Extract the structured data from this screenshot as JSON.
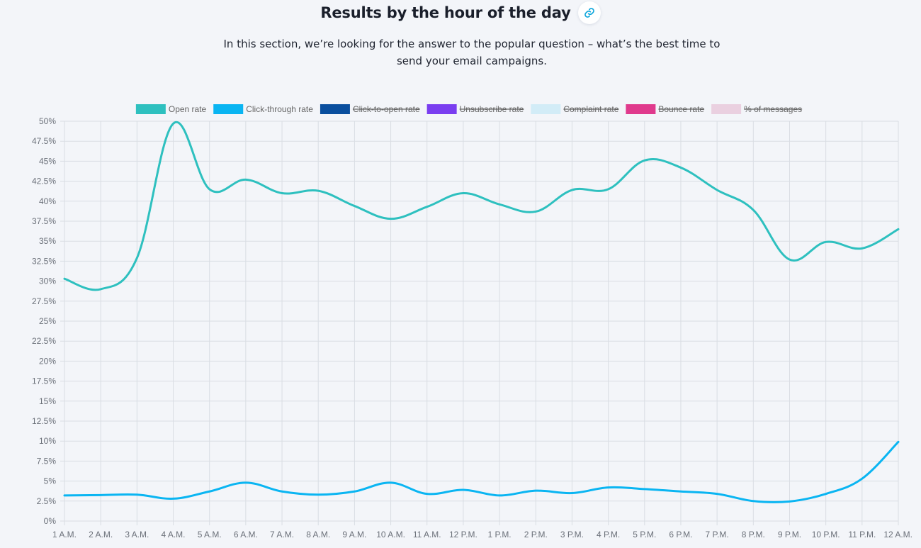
{
  "header": {
    "title": "Results by the hour of the day",
    "subtitle": "In this section, we’re looking for the answer to the popular question – what’s the best time to send your email campaigns.",
    "link_icon": "link-icon"
  },
  "colors": {
    "open_rate": "#2ec0bf",
    "click_through_rate": "#0ab5f2",
    "click_to_open_rate": "#0a4f9e",
    "unsubscribe_rate": "#7a3ef0",
    "complaint_rate": "#d2ecf7",
    "bounce_rate": "#e03a8d",
    "percent_of_messages": "#ead0e0",
    "grid": "#d9dde3",
    "tick_text": "#6b7079",
    "legend_text": "#666666"
  },
  "chart_data": {
    "type": "line",
    "categories": [
      "1 A.M.",
      "2 A.M.",
      "3 A.M.",
      "4 A.M.",
      "5 A.M.",
      "6 A.M.",
      "7 A.M.",
      "8 A.M.",
      "9 A.M.",
      "10 A.M.",
      "11 A.M.",
      "12 P.M.",
      "1 P.M.",
      "2 P.M.",
      "3 P.M.",
      "4 P.M.",
      "5 P.M.",
      "6 P.M.",
      "7 P.M.",
      "8 P.M.",
      "9 P.M.",
      "10 P.M.",
      "11 P.M.",
      "12 A.M."
    ],
    "y_ticks": [
      "0%",
      "2.5%",
      "5%",
      "7.5%",
      "10%",
      "12.5%",
      "15%",
      "17.5%",
      "20%",
      "22.5%",
      "25%",
      "27.5%",
      "30%",
      "32.5%",
      "35%",
      "37.5%",
      "40%",
      "42.5%",
      "45%",
      "47.5%",
      "50%"
    ],
    "ylim": [
      0,
      50
    ],
    "grid": true,
    "legend_position": "top",
    "series": [
      {
        "name": "Open rate",
        "visible": true,
        "color_key": "open_rate",
        "values": [
          30.3,
          29.0,
          32.9,
          49.7,
          41.5,
          42.7,
          41.0,
          41.3,
          39.4,
          37.8,
          39.3,
          41.0,
          39.6,
          38.7,
          41.4,
          41.5,
          45.1,
          44.2,
          41.4,
          38.9,
          32.7,
          34.9,
          34.1,
          36.5
        ]
      },
      {
        "name": "Click-through rate",
        "visible": true,
        "color_key": "click_through_rate",
        "values": [
          3.2,
          3.25,
          3.3,
          2.8,
          3.7,
          4.8,
          3.7,
          3.3,
          3.7,
          4.8,
          3.4,
          3.9,
          3.2,
          3.8,
          3.5,
          4.2,
          4.0,
          3.7,
          3.4,
          2.5,
          2.45,
          3.4,
          5.3,
          9.9
        ]
      },
      {
        "name": "Click-to-open rate",
        "visible": false,
        "color_key": "click_to_open_rate"
      },
      {
        "name": "Unsubscribe rate",
        "visible": false,
        "color_key": "unsubscribe_rate"
      },
      {
        "name": "Complaint rate",
        "visible": false,
        "color_key": "complaint_rate"
      },
      {
        "name": "Bounce rate",
        "visible": false,
        "color_key": "bounce_rate"
      },
      {
        "name": "% of messages",
        "visible": false,
        "color_key": "percent_of_messages"
      }
    ]
  }
}
